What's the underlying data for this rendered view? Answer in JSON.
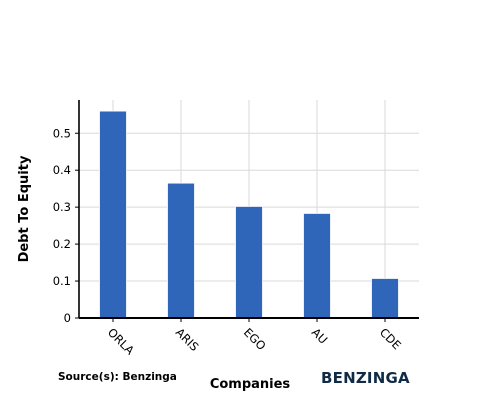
{
  "chart_data": {
    "type": "bar",
    "categories": [
      "ORLA",
      "ARIS",
      "EGO",
      "AU",
      "CDE"
    ],
    "values": [
      0.56,
      0.365,
      0.302,
      0.283,
      0.107
    ],
    "xlabel": "Companies",
    "ylabel": "Debt To Equity",
    "ylim": [
      0,
      0.59
    ],
    "yticks": [
      0,
      0.1,
      0.2,
      0.3,
      0.4,
      0.5
    ],
    "ytick_labels": [
      "0",
      "0.1",
      "0.2",
      "0.3",
      "0.4",
      "0.5"
    ],
    "grid": true,
    "bar_color": "#3066ba"
  },
  "footer": {
    "source": "Source(s): Benzinga",
    "brand": "BENZINGA",
    "brand_color": "#0f2b46"
  }
}
